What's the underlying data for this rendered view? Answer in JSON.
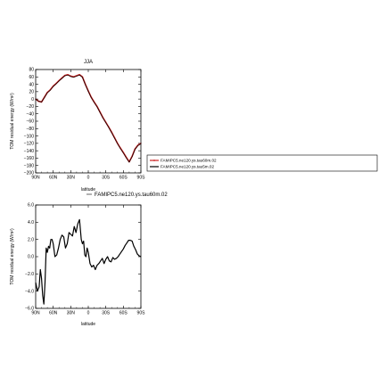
{
  "chart_data": [
    {
      "type": "line",
      "title": "JJA",
      "xlabel": "latitude",
      "ylabel": "TOM residual energy (W/m²)",
      "xlim": [
        90,
        -90
      ],
      "ylim": [
        -200,
        80
      ],
      "xticks": [
        90,
        60,
        30,
        0,
        -30,
        -60,
        -90
      ],
      "xtick_labels": [
        "90N",
        "60N",
        "30N",
        "0",
        "30S",
        "60S",
        "90S"
      ],
      "yticks": [
        -200,
        -180,
        -160,
        -140,
        -120,
        -100,
        -80,
        -60,
        -40,
        -20,
        0,
        20,
        40,
        60,
        80
      ],
      "ytick_labels": [
        "−200",
        "−180",
        "−160",
        "−140",
        "−120",
        "−100",
        "−80",
        "−60",
        "−40",
        "−20",
        "0",
        "20",
        "40",
        "60",
        "80"
      ],
      "legend": {
        "placement": "right",
        "entries": [
          "FAMIPC5.ne120.ys.tau60m.02",
          "FAMIPC5.ne120.ys.tau5m.02"
        ]
      },
      "series": [
        {
          "name": "FAMIPC5.ne120.ys.tau60m.02",
          "color": "#cc2222",
          "x": [
            90,
            85,
            80,
            75,
            70,
            65,
            60,
            55,
            50,
            45,
            40,
            35,
            30,
            25,
            20,
            15,
            10,
            5,
            0,
            -5,
            -10,
            -15,
            -20,
            -25,
            -30,
            -35,
            -40,
            -45,
            -50,
            -55,
            -60,
            -65,
            -70,
            -75,
            -80,
            -85,
            -90
          ],
          "y": [
            0,
            -6,
            -8,
            5,
            18,
            25,
            35,
            42,
            50,
            57,
            64,
            66,
            62,
            60,
            63,
            66,
            60,
            40,
            22,
            5,
            -8,
            -20,
            -35,
            -50,
            -63,
            -76,
            -90,
            -105,
            -120,
            -133,
            -145,
            -158,
            -170,
            -155,
            -135,
            -125,
            -120
          ]
        },
        {
          "name": "FAMIPC5.ne120.ys.tau5m.02",
          "color": "#000000",
          "x": [
            90,
            85,
            80,
            75,
            70,
            65,
            60,
            55,
            50,
            45,
            40,
            35,
            30,
            25,
            20,
            15,
            10,
            5,
            0,
            -5,
            -10,
            -15,
            -20,
            -25,
            -30,
            -35,
            -40,
            -45,
            -50,
            -55,
            -60,
            -65,
            -70,
            -75,
            -80,
            -85,
            -90
          ],
          "y": [
            0,
            -6,
            -8,
            4,
            17,
            24,
            34,
            41,
            49,
            56,
            63,
            65,
            61,
            59,
            62,
            65,
            59,
            39,
            21,
            4,
            -9,
            -21,
            -36,
            -51,
            -64,
            -77,
            -91,
            -106,
            -121,
            -134,
            -146,
            -159,
            -171,
            -156,
            -136,
            -126,
            -121
          ]
        }
      ]
    },
    {
      "type": "line",
      "title": "",
      "subtitle": "FAMIPC5.ne120.ys.tau60m.02",
      "xlabel": "latitude",
      "ylabel": "TOM residual energy (W/m²)",
      "xlim": [
        90,
        -90
      ],
      "ylim": [
        -6,
        6
      ],
      "xticks": [
        90,
        60,
        30,
        0,
        -30,
        -60,
        -90
      ],
      "xtick_labels": [
        "90N",
        "60N",
        "30N",
        "0",
        "30S",
        "60S",
        "90S"
      ],
      "yticks": [
        -6,
        -4,
        -2,
        0,
        2,
        4,
        6
      ],
      "ytick_labels": [
        "−6.0",
        "−4.0",
        "−2.0",
        "0.0",
        "2.0",
        "4.0",
        "6.0"
      ],
      "series": [
        {
          "color": "#000000",
          "x": [
            90,
            87,
            84,
            82,
            80,
            78,
            76,
            74,
            72,
            70,
            68,
            66,
            64,
            62,
            60,
            57,
            54,
            51,
            48,
            45,
            42,
            39,
            36,
            33,
            30,
            27,
            24,
            21,
            18,
            15,
            12,
            10,
            8,
            6,
            4,
            2,
            0,
            -3,
            -6,
            -9,
            -12,
            -15,
            -18,
            -21,
            -24,
            -27,
            -30,
            -33,
            -36,
            -39,
            -42,
            -45,
            -48,
            -51,
            -54,
            -57,
            -60,
            -63,
            -66,
            -69,
            -72,
            -75,
            -78,
            -81,
            -84,
            -87,
            -90
          ],
          "y": [
            -3.0,
            -4.0,
            -3.5,
            -1.5,
            -2.5,
            -4.5,
            -5.5,
            -3.0,
            1.0,
            0.5,
            1.2,
            1.0,
            2.0,
            2.0,
            1.5,
            0.0,
            0.2,
            1.0,
            2.0,
            2.5,
            2.3,
            1.0,
            1.5,
            2.8,
            2.6,
            2.4,
            3.5,
            2.8,
            3.8,
            4.3,
            2.0,
            1.5,
            1.8,
            0.2,
            0.0,
            1.0,
            0.5,
            -0.8,
            -1.2,
            -1.0,
            -1.5,
            -1.0,
            -0.8,
            -0.5,
            -0.2,
            -0.8,
            -0.3,
            0.0,
            -0.5,
            -0.6,
            -0.1,
            -0.3,
            -0.2,
            0.0,
            0.3,
            0.6,
            0.9,
            1.3,
            1.6,
            1.9,
            1.9,
            1.8,
            1.2,
            0.8,
            0.3,
            0.1,
            0.0
          ]
        }
      ]
    }
  ]
}
